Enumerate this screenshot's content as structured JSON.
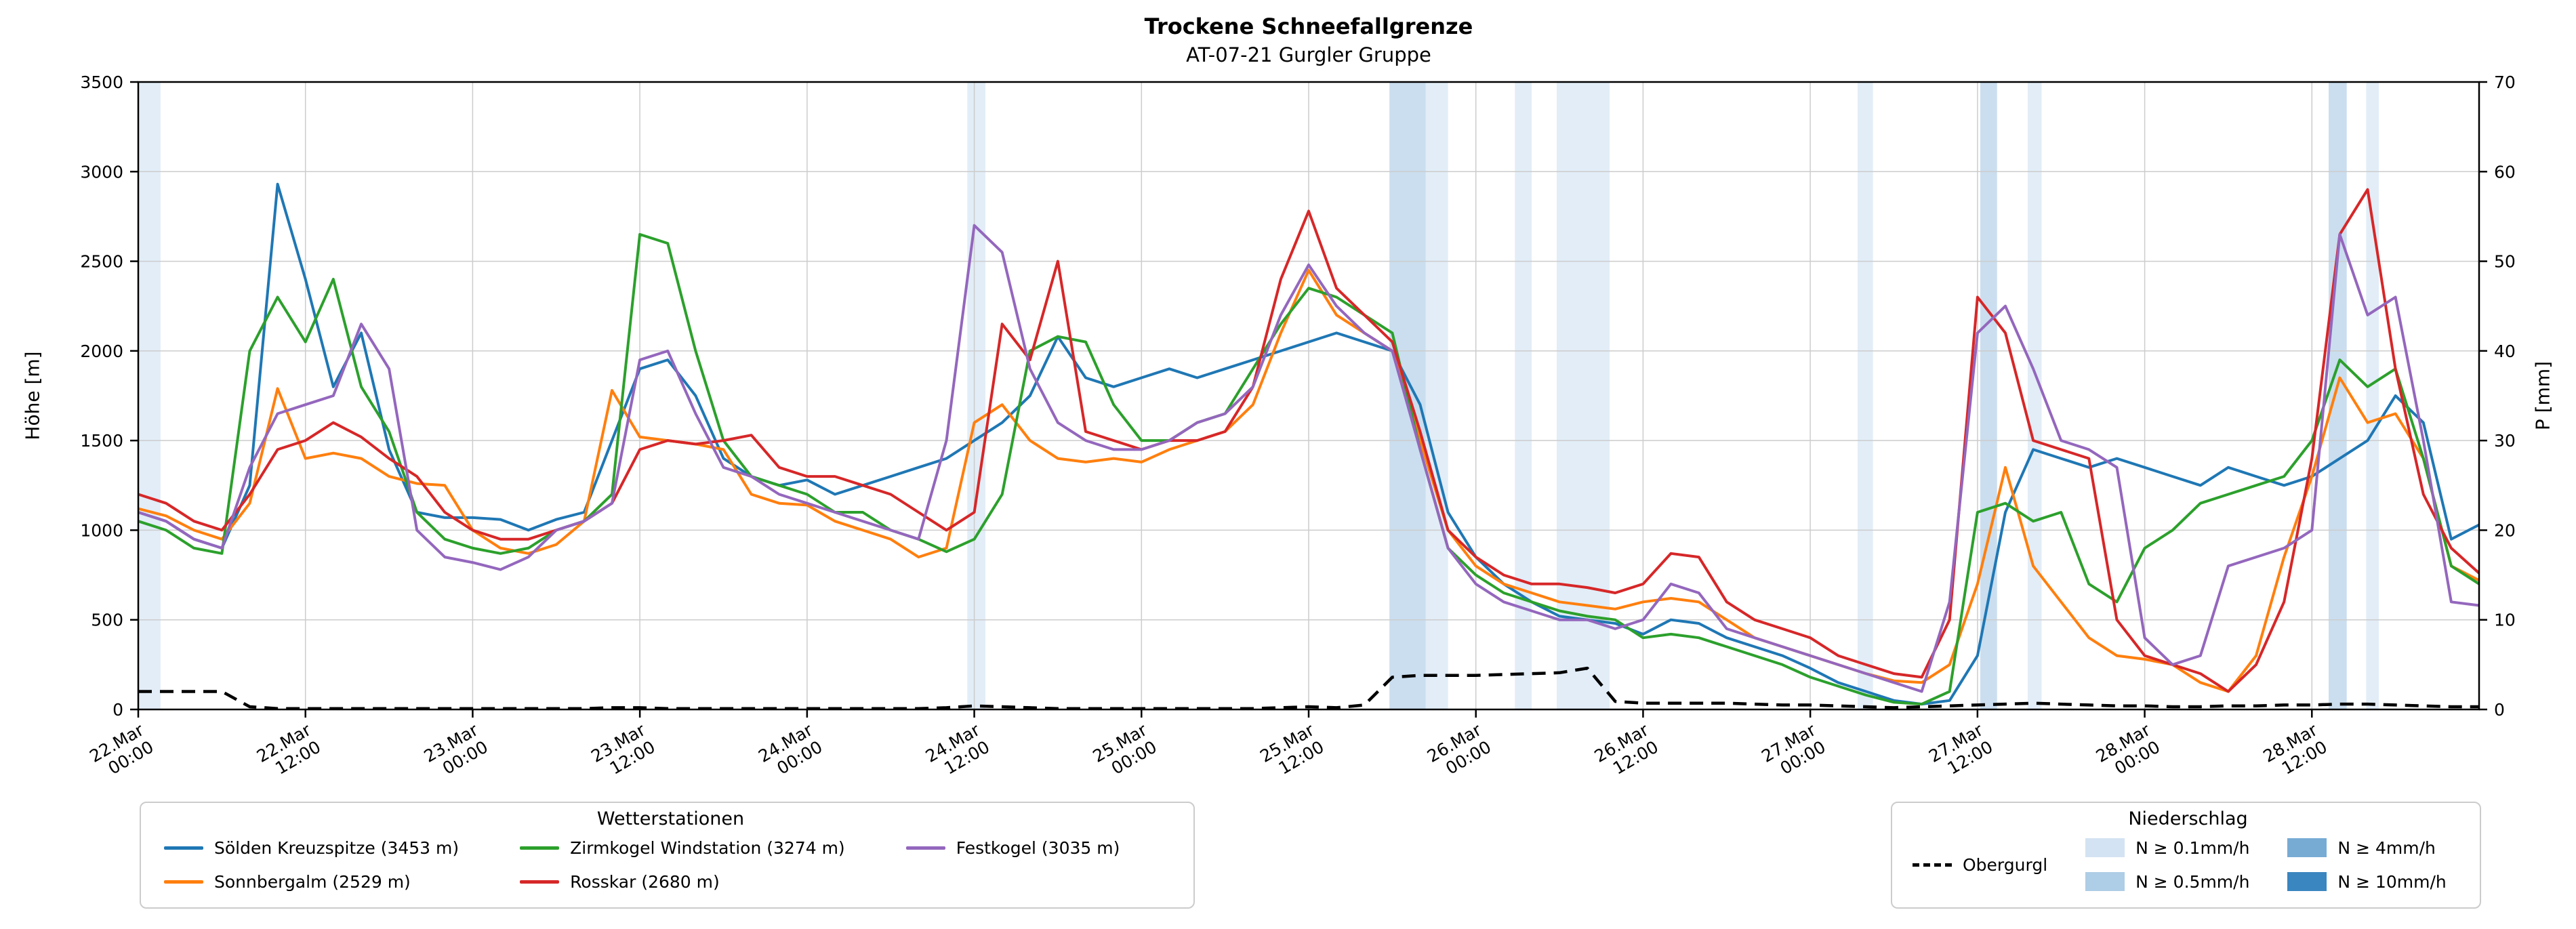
{
  "chart_data": {
    "type": "line",
    "title": "Trockene Schneefallgrenze",
    "subtitle": "AT-07-21 Gurgler Gruppe",
    "ylabel_left": "Höhe [m]",
    "ylabel_right": "P [mm]",
    "ylim_left": [
      0,
      3500
    ],
    "ylim_right": [
      0,
      70
    ],
    "yticks_left": [
      0,
      500,
      1000,
      1500,
      2000,
      2500,
      3000,
      3500
    ],
    "yticks_right": [
      0,
      10,
      20,
      30,
      40,
      50,
      60,
      70
    ],
    "grid": true,
    "x_hour_start": 0,
    "x_hour_step": 2,
    "x_hour_max": 168,
    "x_tick_interval_hours": 12,
    "x_tick_labels": [
      [
        "22.Mar",
        "00:00"
      ],
      [
        "22.Mar",
        "12:00"
      ],
      [
        "23.Mar",
        "00:00"
      ],
      [
        "23.Mar",
        "12:00"
      ],
      [
        "24.Mar",
        "00:00"
      ],
      [
        "24.Mar",
        "12:00"
      ],
      [
        "25.Mar",
        "00:00"
      ],
      [
        "25.Mar",
        "12:00"
      ],
      [
        "26.Mar",
        "00:00"
      ],
      [
        "26.Mar",
        "12:00"
      ],
      [
        "27.Mar",
        "00:00"
      ],
      [
        "27.Mar",
        "12:00"
      ],
      [
        "28.Mar",
        "00:00"
      ],
      [
        "28.Mar",
        "12:00"
      ]
    ],
    "series": [
      {
        "id": "soelden-kreuzspitze",
        "name": "Sölden Kreuzspitze (3453 m)",
        "color": "#1f77b4",
        "axis": "left",
        "style": "solid",
        "legend": "stations",
        "values": [
          1100,
          1050,
          950,
          900,
          1250,
          2930,
          2400,
          1800,
          2100,
          1450,
          1100,
          1070,
          1070,
          1060,
          1000,
          1060,
          1100,
          1500,
          1900,
          1950,
          1750,
          1400,
          1300,
          1250,
          1280,
          1200,
          1250,
          1300,
          1350,
          1400,
          1500,
          1600,
          1750,
          2080,
          1850,
          1800,
          1850,
          1900,
          1850,
          1900,
          1950,
          2000,
          2050,
          2100,
          2050,
          2000,
          1700,
          1100,
          850,
          700,
          600,
          520,
          500,
          480,
          420,
          500,
          480,
          400,
          350,
          300,
          230,
          150,
          100,
          50,
          30,
          50,
          300,
          1100,
          1450,
          1400,
          1350,
          1400,
          1350,
          1300,
          1250,
          1350,
          1300,
          1250,
          1300,
          1400,
          1500,
          1750,
          1600,
          950,
          1030
        ]
      },
      {
        "id": "sonnbergalm",
        "name": "Sonnbergalm (2529 m)",
        "color": "#ff7f0e",
        "axis": "left",
        "style": "solid",
        "legend": "stations",
        "values": [
          1120,
          1080,
          1000,
          950,
          1150,
          1790,
          1400,
          1430,
          1400,
          1300,
          1260,
          1250,
          1000,
          900,
          870,
          920,
          1050,
          1780,
          1520,
          1500,
          1480,
          1450,
          1200,
          1150,
          1140,
          1050,
          1000,
          950,
          850,
          900,
          1600,
          1700,
          1500,
          1400,
          1380,
          1400,
          1380,
          1450,
          1500,
          1550,
          1700,
          2100,
          2450,
          2200,
          2100,
          2000,
          1500,
          1000,
          800,
          700,
          650,
          600,
          580,
          560,
          600,
          620,
          600,
          500,
          400,
          350,
          300,
          250,
          200,
          160,
          150,
          250,
          700,
          1350,
          800,
          600,
          400,
          300,
          280,
          250,
          150,
          100,
          300,
          850,
          1300,
          1850,
          1600,
          1650,
          1400,
          800,
          720
        ]
      },
      {
        "id": "zirmkogel-windstation",
        "name": "Zirmkogel Windstation (3274 m)",
        "color": "#2ca02c",
        "axis": "left",
        "style": "solid",
        "legend": "stations",
        "values": [
          1050,
          1000,
          900,
          870,
          2000,
          2300,
          2050,
          2400,
          1800,
          1550,
          1100,
          950,
          900,
          870,
          900,
          1000,
          1050,
          1200,
          2650,
          2600,
          2000,
          1500,
          1300,
          1250,
          1200,
          1100,
          1100,
          1000,
          950,
          880,
          950,
          1200,
          2000,
          2080,
          2050,
          1700,
          1500,
          1500,
          1600,
          1650,
          1900,
          2150,
          2350,
          2300,
          2200,
          2100,
          1450,
          900,
          750,
          650,
          600,
          550,
          520,
          500,
          400,
          420,
          400,
          350,
          300,
          250,
          180,
          130,
          80,
          40,
          30,
          100,
          1100,
          1150,
          1050,
          1100,
          700,
          600,
          900,
          1000,
          1150,
          1200,
          1250,
          1300,
          1500,
          1950,
          1800,
          1900,
          1400,
          800,
          700
        ]
      },
      {
        "id": "rosskar",
        "name": "Rosskar (2680 m)",
        "color": "#d62728",
        "axis": "left",
        "style": "solid",
        "legend": "stations",
        "values": [
          1200,
          1150,
          1050,
          1000,
          1200,
          1450,
          1500,
          1600,
          1520,
          1400,
          1300,
          1100,
          1000,
          950,
          950,
          1000,
          1050,
          1150,
          1450,
          1500,
          1480,
          1500,
          1530,
          1350,
          1300,
          1300,
          1250,
          1200,
          1100,
          1000,
          1100,
          2150,
          1950,
          2500,
          1550,
          1500,
          1450,
          1500,
          1500,
          1550,
          1800,
          2400,
          2780,
          2350,
          2200,
          2050,
          1550,
          1000,
          850,
          750,
          700,
          700,
          680,
          650,
          700,
          870,
          850,
          600,
          500,
          450,
          400,
          300,
          250,
          200,
          180,
          500,
          2300,
          2100,
          1500,
          1450,
          1400,
          500,
          300,
          250,
          200,
          100,
          250,
          600,
          1400,
          2650,
          2900,
          1900,
          1200,
          900,
          760
        ]
      },
      {
        "id": "festkogel",
        "name": "Festkogel (3035 m)",
        "color": "#9467bd",
        "axis": "left",
        "style": "solid",
        "legend": "stations",
        "values": [
          1100,
          1050,
          950,
          900,
          1350,
          1650,
          1700,
          1750,
          2150,
          1900,
          1000,
          850,
          820,
          780,
          850,
          1000,
          1050,
          1150,
          1950,
          2000,
          1650,
          1350,
          1300,
          1200,
          1150,
          1100,
          1050,
          1000,
          950,
          1500,
          2700,
          2550,
          1900,
          1600,
          1500,
          1450,
          1450,
          1500,
          1600,
          1650,
          1800,
          2200,
          2480,
          2250,
          2100,
          2000,
          1450,
          900,
          700,
          600,
          550,
          500,
          500,
          450,
          500,
          700,
          650,
          450,
          400,
          350,
          300,
          250,
          200,
          150,
          100,
          600,
          2100,
          2250,
          1900,
          1500,
          1450,
          1350,
          400,
          250,
          300,
          800,
          850,
          900,
          1000,
          2650,
          2200,
          2300,
          1500,
          600,
          580
        ]
      },
      {
        "id": "obergurgl",
        "name": "Obergurgl",
        "color": "#000000",
        "axis": "right",
        "style": "dashed",
        "legend": "precip",
        "values": [
          2,
          2,
          2,
          2,
          0.3,
          0.1,
          0.1,
          0.1,
          0.1,
          0.1,
          0.1,
          0.1,
          0.1,
          0.1,
          0.1,
          0.1,
          0.1,
          0.2,
          0.2,
          0.1,
          0.1,
          0.1,
          0.1,
          0.1,
          0.1,
          0.1,
          0.1,
          0.1,
          0.1,
          0.2,
          0.4,
          0.3,
          0.2,
          0.1,
          0.1,
          0.1,
          0.1,
          0.1,
          0.1,
          0.1,
          0.1,
          0.2,
          0.3,
          0.2,
          0.5,
          3.6,
          3.8,
          3.8,
          3.8,
          3.9,
          4.0,
          4.1,
          4.6,
          0.9,
          0.7,
          0.7,
          0.7,
          0.7,
          0.6,
          0.5,
          0.5,
          0.4,
          0.3,
          0.2,
          0.3,
          0.4,
          0.5,
          0.6,
          0.7,
          0.6,
          0.5,
          0.4,
          0.4,
          0.3,
          0.3,
          0.4,
          0.4,
          0.5,
          0.5,
          0.6,
          0.6,
          0.5,
          0.4,
          0.3,
          0.3
        ]
      }
    ],
    "precip_bands": [
      {
        "start_hour": 0,
        "end_hour": 1.6,
        "level": "0.1"
      },
      {
        "start_hour": 59.5,
        "end_hour": 60.8,
        "level": "0.1"
      },
      {
        "start_hour": 89.8,
        "end_hour": 92.4,
        "level": "0.5"
      },
      {
        "start_hour": 92.4,
        "end_hour": 94.0,
        "level": "0.1"
      },
      {
        "start_hour": 98.8,
        "end_hour": 100.0,
        "level": "0.1"
      },
      {
        "start_hour": 101.8,
        "end_hour": 105.6,
        "level": "0.1"
      },
      {
        "start_hour": 123.4,
        "end_hour": 124.5,
        "level": "0.1"
      },
      {
        "start_hour": 132.2,
        "end_hour": 133.4,
        "level": "0.5"
      },
      {
        "start_hour": 135.6,
        "end_hour": 136.6,
        "level": "0.1"
      },
      {
        "start_hour": 157.2,
        "end_hour": 158.5,
        "level": "0.5"
      },
      {
        "start_hour": 159.9,
        "end_hour": 160.8,
        "level": "0.1"
      }
    ],
    "band_colors": {
      "0.1": "#d3e3f3",
      "0.5": "#aecde6",
      "4": "#77abd4",
      "10": "#3a86c0"
    }
  },
  "legends": {
    "stations": {
      "title": "Wetterstationen"
    },
    "precip": {
      "title": "Niederschlag",
      "levels": [
        {
          "id": "n-0-1",
          "label": "N ≥ 0.1mm/h",
          "color": "#d3e3f3"
        },
        {
          "id": "n-0-5",
          "label": "N ≥ 0.5mm/h",
          "color": "#aecde6"
        },
        {
          "id": "n-4",
          "label": "N ≥ 4mm/h",
          "color": "#77abd4"
        },
        {
          "id": "n-10",
          "label": "N ≥ 10mm/h",
          "color": "#3a86c0"
        }
      ]
    }
  }
}
